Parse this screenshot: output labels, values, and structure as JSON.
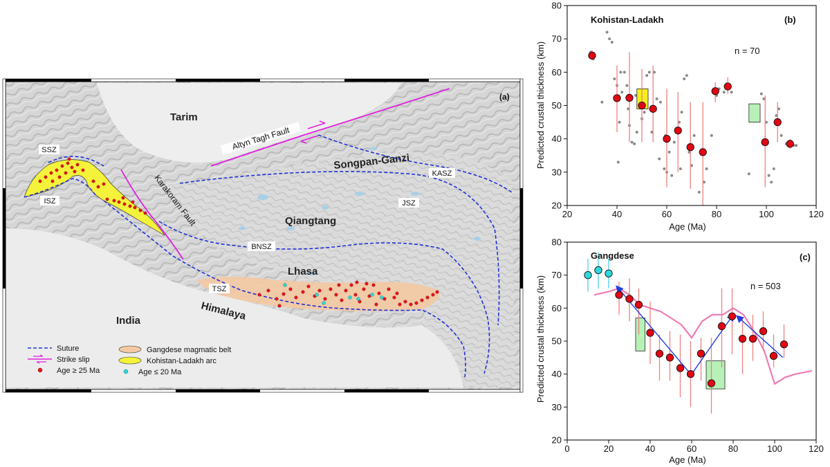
{
  "map": {
    "panel_label": "(a)",
    "regions": {
      "tarim": "Tarim",
      "songpan": "Songpan-Ganzi",
      "qiangtang": "Qiangtang",
      "lhasa": "Lhasa",
      "india": "India",
      "himalaya": "Himalaya"
    },
    "sutures": {
      "ssz": "SSZ",
      "isz": "ISZ",
      "kasz": "KASZ",
      "jsz": "JSZ",
      "bnsz": "BNSZ",
      "tsz": "TSZ"
    },
    "faults": {
      "altyn": "Altyn Tagh Fault",
      "karakoram": "Karakoram Fault"
    },
    "legend": {
      "suture": "Suture",
      "strike_slip": "Strike slip",
      "age_old": "Age ≥ 25 Ma",
      "gangdese_belt": "Gangdese magmatic belt",
      "kohistan_arc": "Kohistan-Ladakh arc",
      "age_young": "Age ≤ 20 Ma"
    },
    "colors": {
      "suture": "#1e2fd6",
      "strike_slip": "#e020e0",
      "age_old": "#e8141a",
      "age_young": "#2fd8d8",
      "gangdese_belt": "#f3c9a4",
      "kohistan_arc": "#f4f23a"
    }
  },
  "chart_data": [
    {
      "type": "scatter",
      "panel_label": "(b)",
      "title": "Kohistan-Ladakh",
      "annotation": "n = 70",
      "xlabel": "Age (Ma)",
      "ylabel": "Predicted crustal thickness (km)",
      "xlim": [
        20,
        120
      ],
      "ylim": [
        20,
        80
      ],
      "xticks": [
        20,
        40,
        60,
        80,
        100,
        120
      ],
      "yticks": [
        20,
        30,
        40,
        50,
        60,
        70,
        80
      ],
      "tick_labels_x": [
        "20",
        "40",
        "60",
        "80",
        "100",
        "120"
      ],
      "tick_labels_y": [
        "20",
        "30",
        "40",
        "50",
        "60",
        "70",
        "80"
      ],
      "means": [
        {
          "x": 30,
          "y": 65,
          "ylo": 63.5,
          "yhi": 66.5
        },
        {
          "x": 40,
          "y": 52.2,
          "ylo": 42,
          "yhi": 62
        },
        {
          "x": 45,
          "y": 52.3,
          "ylo": 39,
          "yhi": 66
        },
        {
          "x": 50,
          "y": 50,
          "ylo": 39,
          "yhi": 61
        },
        {
          "x": 54.5,
          "y": 49,
          "ylo": 39,
          "yhi": 62
        },
        {
          "x": 60,
          "y": 40,
          "ylo": 25.5,
          "yhi": 55
        },
        {
          "x": 64.5,
          "y": 42.5,
          "ylo": 30,
          "yhi": 54
        },
        {
          "x": 69.5,
          "y": 37.5,
          "ylo": 25,
          "yhi": 51
        },
        {
          "x": 74.5,
          "y": 36,
          "ylo": 20,
          "yhi": 51
        },
        {
          "x": 79.5,
          "y": 54.3,
          "ylo": 51,
          "yhi": 57
        },
        {
          "x": 84.5,
          "y": 55.7,
          "ylo": 53.5,
          "yhi": 58.5
        },
        {
          "x": 99.5,
          "y": 39,
          "ylo": 25.5,
          "yhi": 53
        },
        {
          "x": 104.5,
          "y": 45,
          "ylo": 39,
          "yhi": 51
        },
        {
          "x": 109.5,
          "y": 38.5,
          "ylo": 37,
          "yhi": 40
        }
      ],
      "boxes": [
        {
          "x0": 48,
          "x1": 52.5,
          "y0": 49,
          "y1": 55,
          "color": "#f6ef1c"
        },
        {
          "x0": 93,
          "x1": 97.5,
          "y0": 45,
          "y1": 50.5,
          "color": "#b8f1b8"
        }
      ],
      "samples": [
        {
          "x": 29.5,
          "y": 66
        },
        {
          "x": 30.5,
          "y": 64
        },
        {
          "x": 36,
          "y": 72
        },
        {
          "x": 37,
          "y": 70
        },
        {
          "x": 38,
          "y": 69
        },
        {
          "x": 39,
          "y": 58
        },
        {
          "x": 40,
          "y": 56
        },
        {
          "x": 40.5,
          "y": 33
        },
        {
          "x": 41,
          "y": 45
        },
        {
          "x": 41.5,
          "y": 60
        },
        {
          "x": 42,
          "y": 54
        },
        {
          "x": 43,
          "y": 60
        },
        {
          "x": 44,
          "y": 56
        },
        {
          "x": 45,
          "y": 44
        },
        {
          "x": 46,
          "y": 39
        },
        {
          "x": 47,
          "y": 38.5
        },
        {
          "x": 47.5,
          "y": 53
        },
        {
          "x": 48,
          "y": 42
        },
        {
          "x": 49,
          "y": 51
        },
        {
          "x": 50,
          "y": 46
        },
        {
          "x": 51,
          "y": 48
        },
        {
          "x": 52,
          "y": 59
        },
        {
          "x": 53,
          "y": 60
        },
        {
          "x": 54,
          "y": 42
        },
        {
          "x": 55,
          "y": 60
        },
        {
          "x": 56,
          "y": 52
        },
        {
          "x": 57.5,
          "y": 51
        },
        {
          "x": 59,
          "y": 31
        },
        {
          "x": 59.5,
          "y": 41
        },
        {
          "x": 60,
          "y": 30
        },
        {
          "x": 61,
          "y": 36
        },
        {
          "x": 62,
          "y": 29
        },
        {
          "x": 63,
          "y": 39
        },
        {
          "x": 64,
          "y": 42
        },
        {
          "x": 65,
          "y": 45
        },
        {
          "x": 65.5,
          "y": 31
        },
        {
          "x": 66,
          "y": 48
        },
        {
          "x": 67,
          "y": 58
        },
        {
          "x": 68,
          "y": 59
        },
        {
          "x": 69,
          "y": 36
        },
        {
          "x": 70,
          "y": 32
        },
        {
          "x": 71,
          "y": 41
        },
        {
          "x": 73,
          "y": 24
        },
        {
          "x": 74,
          "y": 36
        },
        {
          "x": 75,
          "y": 27
        },
        {
          "x": 76,
          "y": 31
        },
        {
          "x": 78,
          "y": 41
        },
        {
          "x": 80,
          "y": 53
        },
        {
          "x": 81,
          "y": 55
        },
        {
          "x": 83,
          "y": 54
        },
        {
          "x": 85,
          "y": 56
        },
        {
          "x": 86,
          "y": 54
        },
        {
          "x": 93,
          "y": 29.5
        },
        {
          "x": 98,
          "y": 53.5
        },
        {
          "x": 99,
          "y": 52
        },
        {
          "x": 100,
          "y": 45
        },
        {
          "x": 101,
          "y": 29
        },
        {
          "x": 102,
          "y": 27
        },
        {
          "x": 103,
          "y": 31
        },
        {
          "x": 104,
          "y": 47
        },
        {
          "x": 105,
          "y": 49
        },
        {
          "x": 106,
          "y": 41
        },
        {
          "x": 108,
          "y": 38.5
        },
        {
          "x": 110,
          "y": 38
        },
        {
          "x": 111,
          "y": 38
        },
        {
          "x": 112,
          "y": 38
        },
        {
          "x": 34,
          "y": 51
        },
        {
          "x": 44.5,
          "y": 49
        },
        {
          "x": 57,
          "y": 34
        },
        {
          "x": 96,
          "y": 46
        }
      ],
      "colors": {
        "mean": "#e30613",
        "errorbar": "#f08080",
        "sample": "#8a8a8a"
      }
    },
    {
      "type": "scatter",
      "panel_label": "(c)",
      "title": "Gangdese",
      "annotation": "n = 503",
      "xlabel": "Age (Ma)",
      "ylabel": "Predicted crustal thickness (km)",
      "xlim": [
        0,
        120
      ],
      "ylim": [
        20,
        80
      ],
      "xticks": [
        0,
        20,
        40,
        60,
        80,
        100,
        120
      ],
      "yticks": [
        20,
        30,
        40,
        50,
        60,
        70,
        80
      ],
      "tick_labels_x": [
        "0",
        "20",
        "40",
        "60",
        "80",
        "100",
        "120"
      ],
      "tick_labels_y": [
        "20",
        "30",
        "40",
        "50",
        "60",
        "70",
        "80"
      ],
      "young_means": [
        {
          "x": 10,
          "y": 70,
          "ylo": 65,
          "yhi": 75
        },
        {
          "x": 15,
          "y": 71.5,
          "ylo": 66,
          "yhi": 77
        },
        {
          "x": 20,
          "y": 70.5,
          "ylo": 66,
          "yhi": 75
        }
      ],
      "means": [
        {
          "x": 25,
          "y": 64,
          "ylo": 58,
          "yhi": 68
        },
        {
          "x": 30,
          "y": 62.8,
          "ylo": 56,
          "yhi": 69
        },
        {
          "x": 34.5,
          "y": 61,
          "ylo": 52,
          "yhi": 66
        },
        {
          "x": 40,
          "y": 52.5,
          "ylo": 43,
          "yhi": 62
        },
        {
          "x": 44.5,
          "y": 46.2,
          "ylo": 38,
          "yhi": 52
        },
        {
          "x": 49.5,
          "y": 45,
          "ylo": 38,
          "yhi": 53
        },
        {
          "x": 54.5,
          "y": 41.8,
          "ylo": 33,
          "yhi": 52
        },
        {
          "x": 59.5,
          "y": 40,
          "ylo": 30,
          "yhi": 50
        },
        {
          "x": 64.5,
          "y": 46.2,
          "ylo": 38,
          "yhi": 51
        },
        {
          "x": 69.5,
          "y": 37.2,
          "ylo": 28,
          "yhi": 51
        },
        {
          "x": 74.5,
          "y": 54.5,
          "ylo": 42,
          "yhi": 66
        },
        {
          "x": 79.5,
          "y": 57.5,
          "ylo": 46,
          "yhi": 66
        },
        {
          "x": 84.5,
          "y": 50.7,
          "ylo": 40,
          "yhi": 57
        },
        {
          "x": 89.5,
          "y": 50.7,
          "ylo": 44,
          "yhi": 58
        },
        {
          "x": 94.5,
          "y": 53,
          "ylo": 47,
          "yhi": 59
        },
        {
          "x": 99.5,
          "y": 45.5,
          "ylo": 42,
          "yhi": 52
        },
        {
          "x": 104.5,
          "y": 49,
          "ylo": 45,
          "yhi": 55
        }
      ],
      "boxes": [
        {
          "x0": 33,
          "x1": 37.5,
          "y0": 47,
          "y1": 57,
          "color": "#b8f1b8"
        },
        {
          "x0": 67,
          "x1": 76,
          "y0": 35.5,
          "y1": 44,
          "color": "#b8f1b8"
        }
      ],
      "trend_line": {
        "x": [
          13,
          20,
          25,
          30,
          35,
          40,
          45,
          50,
          55,
          60,
          65,
          70,
          75,
          80,
          85,
          90,
          95,
          100,
          105,
          110,
          118
        ],
        "y": [
          64,
          65,
          66,
          64,
          61,
          60,
          59,
          57,
          55,
          51,
          56,
          58,
          58,
          60,
          58,
          53,
          47,
          37,
          39,
          40,
          41
        ]
      },
      "arrows": [
        {
          "from": [
            59.5,
            40
          ],
          "to": [
            24,
            66.5
          ]
        },
        {
          "from": [
            60,
            40
          ],
          "to": [
            80,
            58
          ]
        },
        {
          "from": [
            104,
            45
          ],
          "to": [
            82,
            57.5
          ]
        }
      ],
      "colors": {
        "mean": "#e30613",
        "young_mean": "#2fd8d8",
        "young_errorbar": "#48d1e6",
        "errorbar": "#f08080",
        "sample": "#b8b8b8",
        "trend": "#f07ab4",
        "arrow": "#1f3fe0"
      }
    }
  ]
}
